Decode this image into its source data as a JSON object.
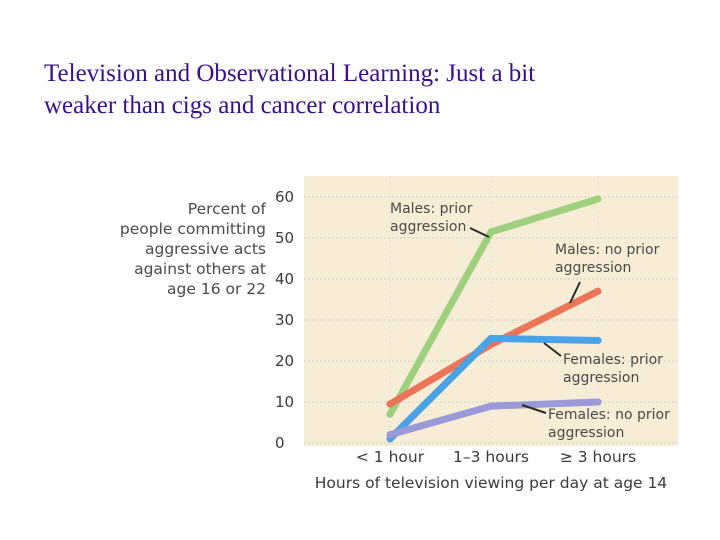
{
  "slide": {
    "title_line1": "Television and Observational Learning: Just a bit",
    "title_line2": "weaker than cigs and cancer correlation"
  },
  "chart_data": {
    "type": "line",
    "x_categories": [
      "< 1 hour",
      "1–3 hours",
      "≥ 3 hours"
    ],
    "xlabel": "Hours of television viewing per day at age 14",
    "ylabel_lines": [
      "Percent of",
      "people committing",
      "aggressive acts",
      "against others at",
      "age 16 or 22"
    ],
    "ylim": [
      0,
      60
    ],
    "yticks": [
      0,
      10,
      20,
      30,
      40,
      50,
      60
    ],
    "grid": "horizontal dotted",
    "background_color": "#f7edd6",
    "series": [
      {
        "name": "Males: prior aggression",
        "label_lines": [
          "Males: prior",
          "aggression"
        ],
        "values": [
          7,
          51.5,
          59.5
        ],
        "color": "#9fd07e"
      },
      {
        "name": "Males: no prior aggression",
        "label_lines": [
          "Males: no prior",
          "aggression"
        ],
        "values": [
          9.5,
          24,
          37
        ],
        "color": "#ec7457"
      },
      {
        "name": "Females: prior aggression",
        "label_lines": [
          "Females: prior",
          "aggression"
        ],
        "values": [
          1,
          25.5,
          25
        ],
        "color": "#4aa3e6"
      },
      {
        "name": "Females: no prior aggression",
        "label_lines": [
          "Females: no prior",
          "aggression"
        ],
        "values": [
          2,
          9,
          10
        ],
        "color": "#9b9ad8"
      }
    ]
  }
}
